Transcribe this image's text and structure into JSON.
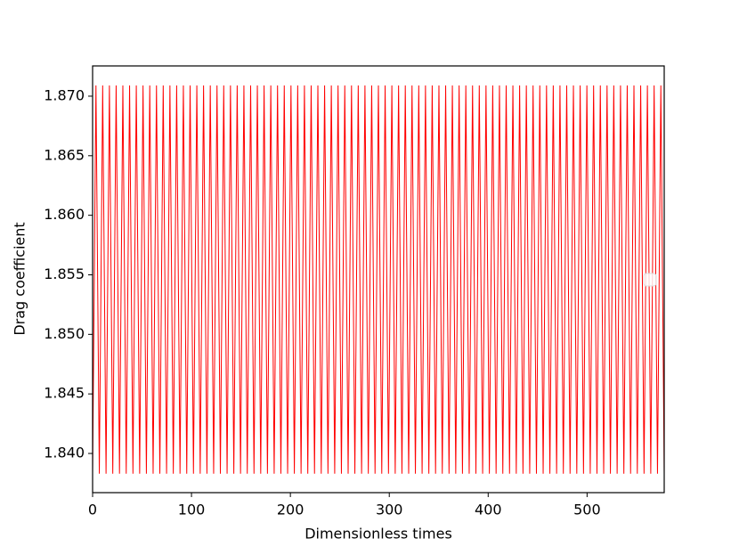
{
  "chart_data": {
    "type": "line",
    "xlabel": "Dimensionless times",
    "ylabel": "Drag coefficient",
    "color": "#ff0000",
    "xlim": [
      0,
      578
    ],
    "ylim": [
      1.83671,
      1.87254
    ],
    "xticks": [
      0,
      100,
      200,
      300,
      400,
      500
    ],
    "yticks": [
      {
        "value": 1.84,
        "label": "1.840"
      },
      1.845,
      {
        "value": 1.85,
        "label": "1.850"
      },
      1.855,
      {
        "value": 1.86,
        "label": "1.860"
      },
      1.865,
      {
        "value": 1.87,
        "label": "1.870"
      }
    ],
    "x": [
      0,
      3.4,
      6.8,
      10.2,
      13.6,
      17,
      20.4,
      23.8,
      27.2,
      30.6,
      34,
      37.4,
      40.8,
      44.2,
      47.6,
      51,
      54.4,
      57.8,
      61.2,
      64.6,
      68,
      71.4,
      74.8,
      78.2,
      81.6,
      85,
      88.4,
      91.8,
      95.2,
      98.6,
      102,
      105.4,
      108.8,
      112.2,
      115.6,
      119,
      122.4,
      125.8,
      129.2,
      132.6,
      136,
      139.4,
      142.8,
      146.2,
      149.6,
      153,
      156.4,
      159.8,
      163.2,
      166.6,
      170,
      173.4,
      176.8,
      180.2,
      183.6,
      187,
      190.4,
      193.8,
      197.2,
      200.6,
      204,
      207.4,
      210.8,
      214.2,
      217.6,
      221,
      224.4,
      227.8,
      231.2,
      234.6,
      238,
      241.4,
      244.8,
      248.2,
      251.6,
      255,
      258.4,
      261.8,
      265.2,
      268.6,
      272,
      275.4,
      278.8,
      282.2,
      285.6,
      289,
      292.4,
      295.8,
      299.2,
      302.6,
      306,
      309.4,
      312.8,
      316.2,
      319.6,
      323,
      326.4,
      329.8,
      333.2,
      336.6,
      340,
      343.4,
      346.8,
      350.2,
      353.6,
      357,
      360.4,
      363.8,
      367.2,
      370.6,
      374,
      377.4,
      380.8,
      384.2,
      387.6,
      391,
      394.4,
      397.8,
      401.2,
      404.6,
      408,
      411.4,
      414.8,
      418.2,
      421.6,
      425,
      428.4,
      431.8,
      435.2,
      438.6,
      442,
      445.4,
      448.8,
      452.2,
      455.6,
      459,
      462.4,
      465.8,
      469.2,
      472.6,
      476,
      479.4,
      482.8,
      486.2,
      489.6,
      493,
      496.4,
      499.8,
      503.2,
      506.6,
      510,
      513.4,
      516.8,
      520.2,
      523.6,
      527,
      530.4,
      533.8,
      537.2,
      540.6,
      544,
      547.4,
      550.8,
      554.2,
      557.6,
      561,
      564.4,
      567.8,
      571.2,
      574.6,
      578
    ],
    "values": [
      1.8383,
      1.8709,
      1.8383,
      1.8709,
      1.8383,
      1.8709,
      1.8383,
      1.8709,
      1.8383,
      1.8709,
      1.8383,
      1.8709,
      1.8383,
      1.8709,
      1.8383,
      1.8709,
      1.8383,
      1.8709,
      1.8383,
      1.8709,
      1.8383,
      1.8709,
      1.8383,
      1.8709,
      1.8383,
      1.8709,
      1.8383,
      1.8709,
      1.8383,
      1.8709,
      1.8383,
      1.8709,
      1.8383,
      1.8709,
      1.8383,
      1.8709,
      1.8383,
      1.8709,
      1.8383,
      1.8709,
      1.8383,
      1.8709,
      1.8383,
      1.8709,
      1.8383,
      1.8709,
      1.8383,
      1.8709,
      1.8383,
      1.8709,
      1.8383,
      1.8709,
      1.8383,
      1.8709,
      1.8383,
      1.8709,
      1.8383,
      1.8709,
      1.8383,
      1.8709,
      1.8383,
      1.8709,
      1.8383,
      1.8709,
      1.8383,
      1.8709,
      1.8383,
      1.8709,
      1.8383,
      1.8709,
      1.8383,
      1.8709,
      1.8383,
      1.8709,
      1.8383,
      1.8709,
      1.8383,
      1.8709,
      1.8383,
      1.8709,
      1.8383,
      1.8709,
      1.8383,
      1.8709,
      1.8383,
      1.8709,
      1.8383,
      1.8709,
      1.8383,
      1.8709,
      1.8383,
      1.8709,
      1.8383,
      1.8709,
      1.8383,
      1.8709,
      1.8383,
      1.8709,
      1.8383,
      1.8709,
      1.8383,
      1.8709,
      1.8383,
      1.8709,
      1.8383,
      1.8709,
      1.8383,
      1.8709,
      1.8383,
      1.8709,
      1.8383,
      1.8709,
      1.8383,
      1.8709,
      1.8383,
      1.8709,
      1.8383,
      1.8709,
      1.8383,
      1.8709,
      1.8383,
      1.8709,
      1.8383,
      1.8709,
      1.8383,
      1.8709,
      1.8383,
      1.8709,
      1.8383,
      1.8709,
      1.8383,
      1.8709,
      1.8383,
      1.8709,
      1.8383,
      1.8709,
      1.8383,
      1.8709,
      1.8383,
      1.8709,
      1.8383,
      1.8709,
      1.8383,
      1.8709,
      1.8383,
      1.8709,
      1.8383,
      1.8709,
      1.8383,
      1.8709,
      1.8383,
      1.8709,
      1.8383,
      1.8709,
      1.8383,
      1.8709,
      1.8383,
      1.8709,
      1.8383,
      1.8709,
      1.8383,
      1.8709,
      1.8383,
      1.8709,
      1.8383,
      1.8709,
      1.8383,
      1.8709,
      1.8383,
      1.8709,
      1.8383
    ]
  }
}
